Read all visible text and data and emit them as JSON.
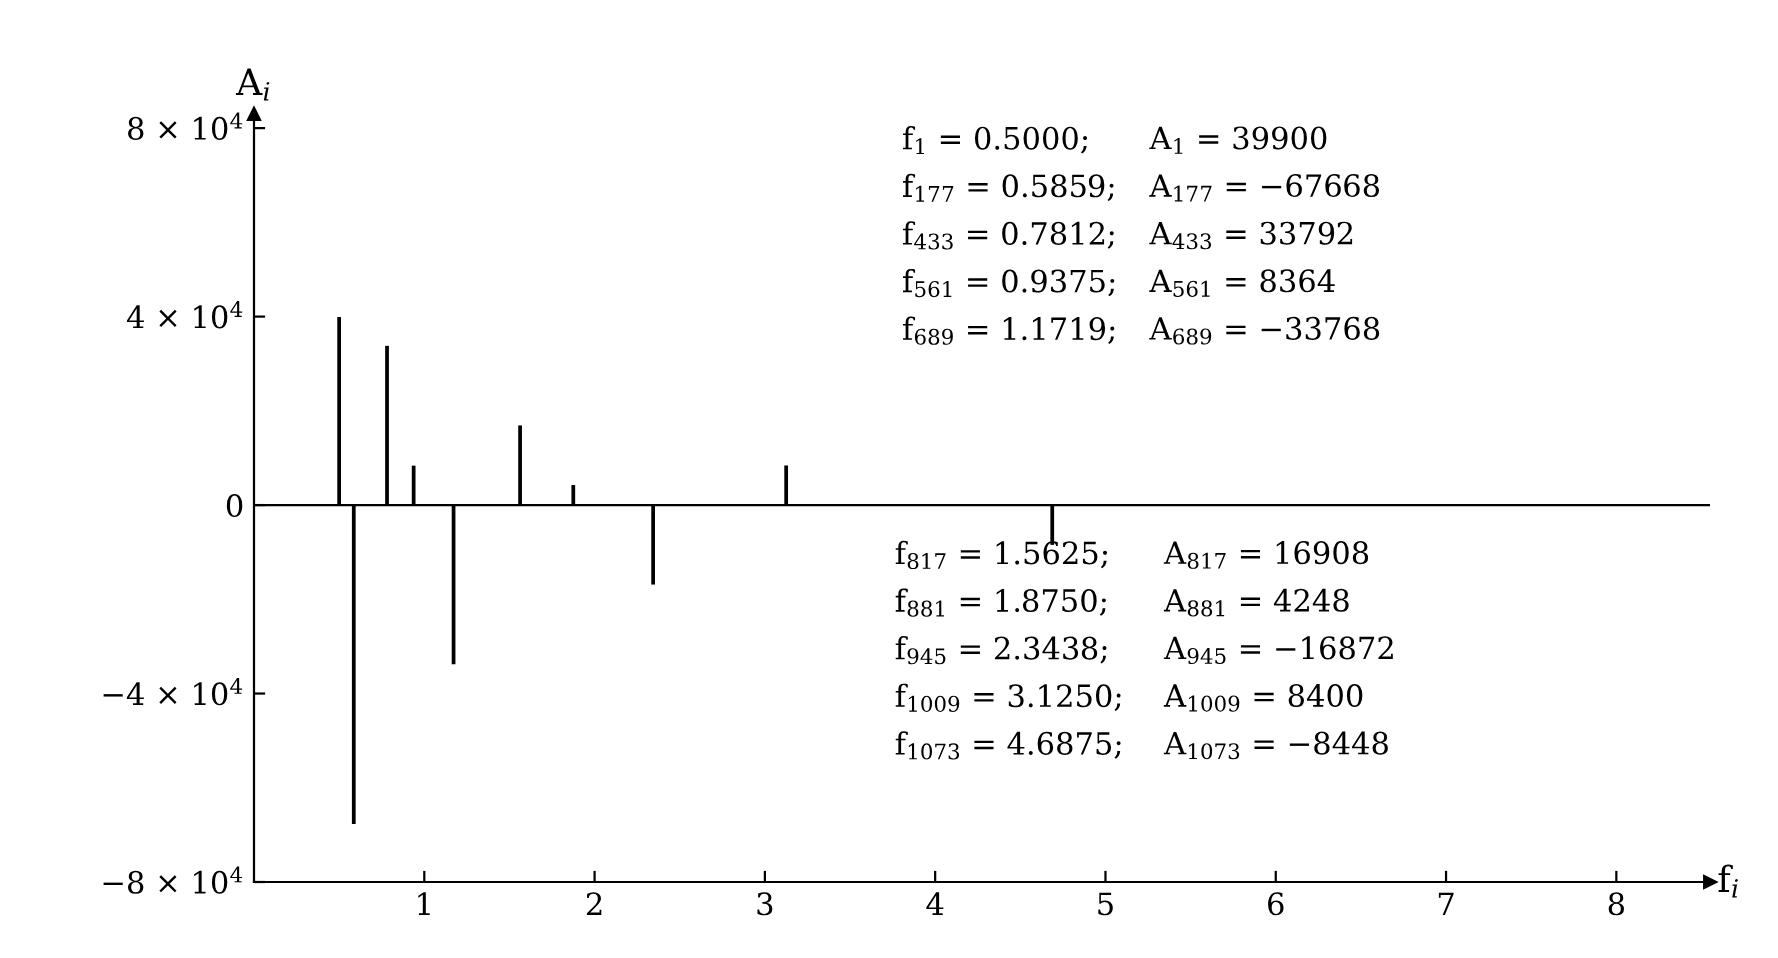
{
  "chart_data": {
    "type": "bar",
    "xlabel": "f$_{i}$",
    "ylabel": "A$_{i}$",
    "x": [
      0.5,
      0.5859,
      0.7812,
      0.9375,
      1.1719,
      1.5625,
      1.875,
      2.3438,
      3.125,
      4.6875
    ],
    "values": [
      39900,
      -67668,
      33792,
      8364,
      -33768,
      16908,
      4248,
      -16872,
      8400,
      -8448
    ],
    "color": "#000000",
    "xlim": [
      0,
      8.55
    ],
    "ylim": [
      -80000,
      83000
    ],
    "xticks": [
      1,
      2,
      3,
      4,
      5,
      6,
      7,
      8
    ],
    "yticks": [
      {
        "value": -80000,
        "label": "−8 × 10$^{4}$"
      },
      {
        "value": -40000,
        "label": "−4 × 10$^{4}$"
      },
      0,
      {
        "value": 40000,
        "label": "4 × 10$^{4}$"
      },
      {
        "value": 80000,
        "label": "8 × 10$^{4}$"
      }
    ],
    "ref_lines": [
      {
        "axis": "y",
        "value": 0,
        "color": "#000000"
      }
    ],
    "grid": false,
    "legend": false,
    "annotations": [
      "f$_{1}$ = 0.5000;",
      "A$_{1}$ = 39900",
      "f$_{177}$ = 0.5859;",
      "A$_{177}$ = −67668",
      "f$_{433}$ = 0.7812;",
      "A$_{433}$ = 33792",
      "f$_{561}$ = 0.9375;",
      "A$_{561}$ = 8364",
      "f$_{689}$ = 1.1719;",
      "A$_{689}$ = −33768",
      "f$_{817}$ = 1.5625;",
      "A$_{817}$ = 16908",
      "f$_{881}$ = 1.8750;",
      "A$_{881}$ = 4248",
      "f$_{945}$ = 2.3438;",
      "A$_{945}$ = −16872",
      "f$_{1009}$ = 3.1250;",
      "A$_{1009}$ = 8400",
      "f$_{1073}$ = 4.6875;",
      "A$_{1073}$ = −8448"
    ]
  }
}
